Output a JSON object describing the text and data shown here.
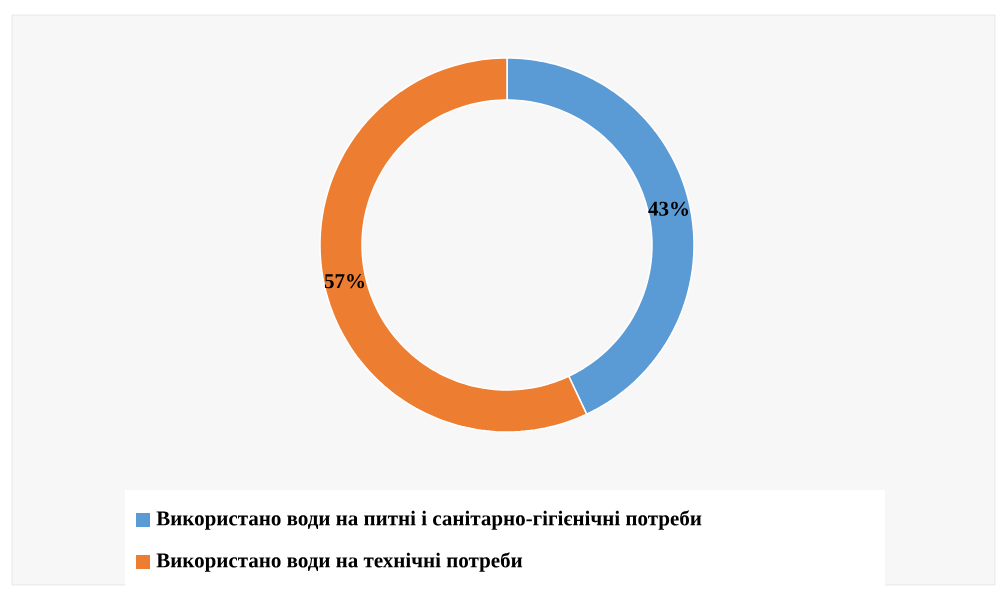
{
  "chart_data": {
    "type": "donut",
    "categories": [
      "Використано води на питні і санітарно-гігієнічні потреби",
      "Використано води на технічні потреби"
    ],
    "values": [
      43,
      57
    ],
    "colors": [
      "#5b9bd5",
      "#ed7d31"
    ],
    "value_labels": [
      "43%",
      "57%"
    ],
    "legend": "bottom"
  }
}
